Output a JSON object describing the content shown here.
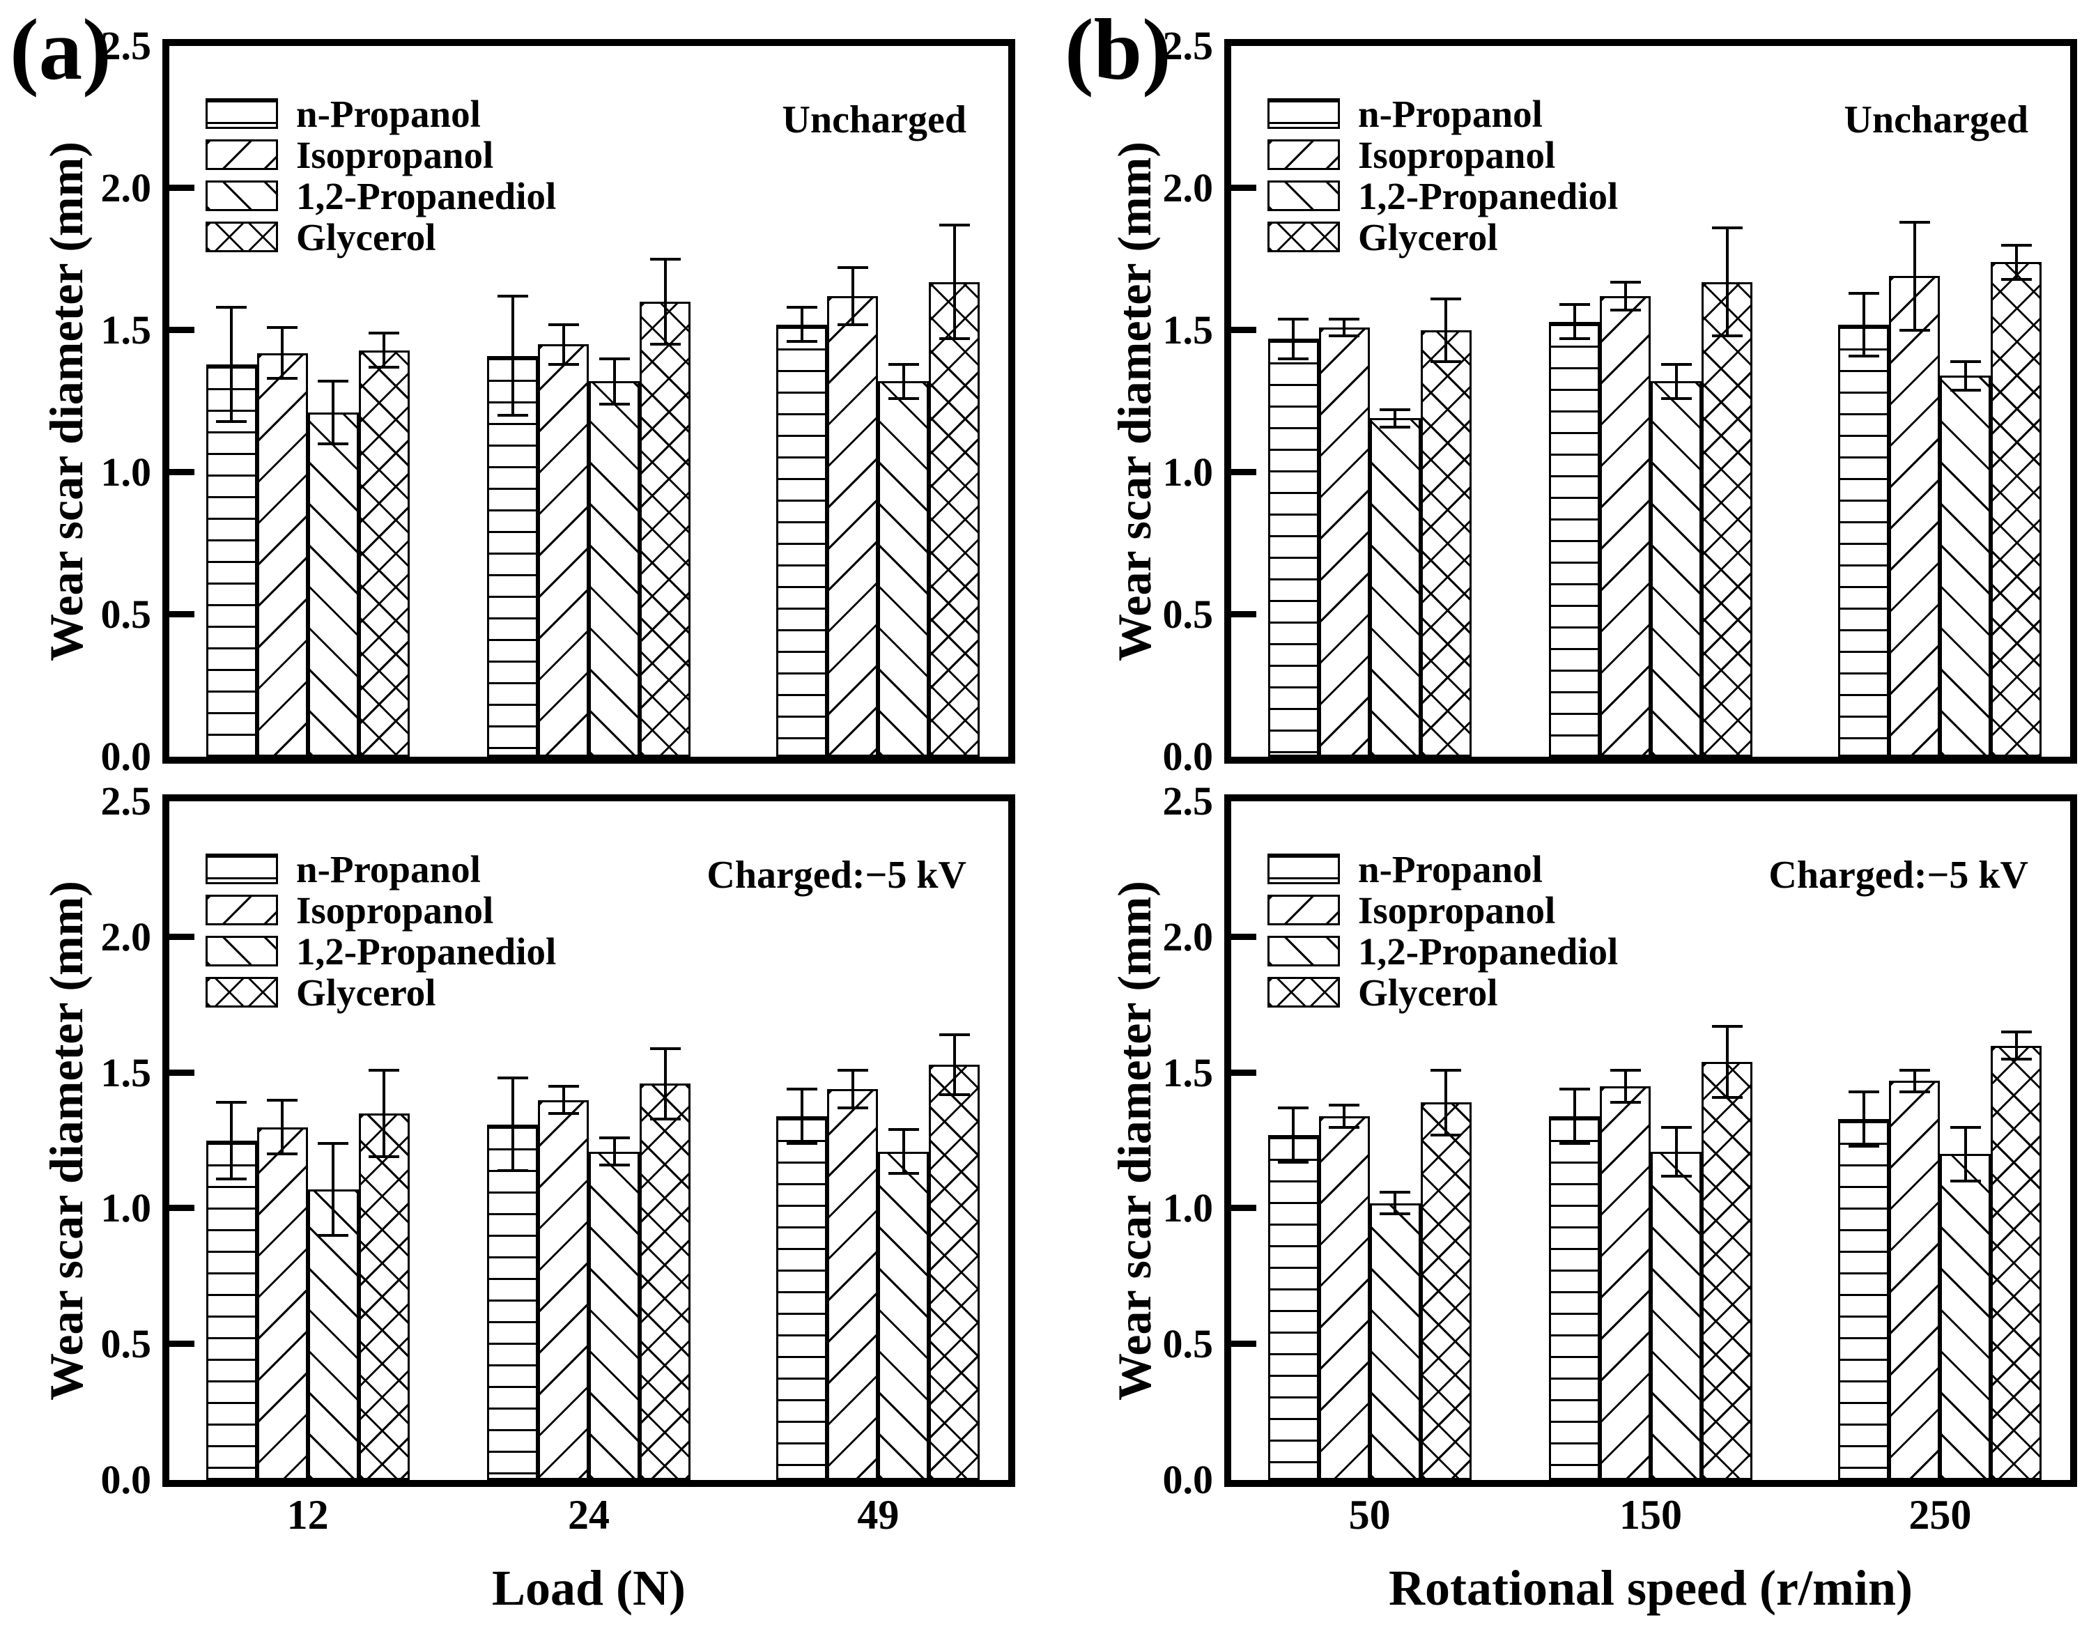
{
  "figure": {
    "background": "#ffffff",
    "ink": "#000000",
    "panel_labels": {
      "a": "(a)",
      "b": "(b)"
    },
    "y_axis_title": "Wear scar diameter (mm)",
    "x_axis_titles": {
      "a": "Load (N)",
      "b": "Rotational speed (r/min)"
    },
    "legend_labels": [
      "n-Propanol",
      "Isopropanol",
      "1,2-Propanediol",
      "Glycerol"
    ],
    "annotations": {
      "uncharged": "Uncharged",
      "charged": "Charged:−5 kV"
    }
  },
  "chart_data": [
    {
      "id": "a-top",
      "type": "bar",
      "title_annotation": "Uncharged",
      "xlabel": "Load (N)",
      "ylabel": "Wear scar diameter (mm)",
      "ylim": [
        0.0,
        2.5
      ],
      "yticks": [
        "0.0",
        "0.5",
        "1.0",
        "1.5",
        "2.0",
        "2.5"
      ],
      "categories": [
        "12",
        "24",
        "49"
      ],
      "show_x_tick_labels": false,
      "legend_position": "upper-left",
      "grid": false,
      "series": [
        {
          "name": "n-Propanol",
          "hatch": "horizontal",
          "values": [
            1.38,
            1.41,
            1.52
          ],
          "errors": [
            0.2,
            0.21,
            0.06
          ]
        },
        {
          "name": "Isopropanol",
          "hatch": "diagonal-up",
          "values": [
            1.42,
            1.45,
            1.62
          ],
          "errors": [
            0.09,
            0.07,
            0.1
          ]
        },
        {
          "name": "1,2-Propanediol",
          "hatch": "diagonal-down",
          "values": [
            1.21,
            1.32,
            1.32
          ],
          "errors": [
            0.11,
            0.08,
            0.06
          ]
        },
        {
          "name": "Glycerol",
          "hatch": "crosshatch",
          "values": [
            1.43,
            1.6,
            1.67
          ],
          "errors": [
            0.06,
            0.15,
            0.2
          ]
        }
      ]
    },
    {
      "id": "b-top",
      "type": "bar",
      "title_annotation": "Uncharged",
      "xlabel": "Rotational speed (r/min)",
      "ylabel": "Wear scar diameter (mm)",
      "ylim": [
        0.0,
        2.5
      ],
      "yticks": [
        "0.0",
        "0.5",
        "1.0",
        "1.5",
        "2.0",
        "2.5"
      ],
      "categories": [
        "50",
        "150",
        "250"
      ],
      "show_x_tick_labels": false,
      "legend_position": "upper-left",
      "grid": false,
      "series": [
        {
          "name": "n-Propanol",
          "hatch": "horizontal",
          "values": [
            1.47,
            1.53,
            1.52
          ],
          "errors": [
            0.07,
            0.06,
            0.11
          ]
        },
        {
          "name": "Isopropanol",
          "hatch": "diagonal-up",
          "values": [
            1.51,
            1.62,
            1.69
          ],
          "errors": [
            0.03,
            0.05,
            0.19
          ]
        },
        {
          "name": "1,2-Propanediol",
          "hatch": "diagonal-down",
          "values": [
            1.19,
            1.32,
            1.34
          ],
          "errors": [
            0.03,
            0.06,
            0.05
          ]
        },
        {
          "name": "Glycerol",
          "hatch": "crosshatch",
          "values": [
            1.5,
            1.67,
            1.74
          ],
          "errors": [
            0.11,
            0.19,
            0.06
          ]
        }
      ]
    },
    {
      "id": "a-bottom",
      "type": "bar",
      "title_annotation": "Charged:−5 kV",
      "xlabel": "Load (N)",
      "ylabel": "Wear scar diameter (mm)",
      "ylim": [
        0.0,
        2.5
      ],
      "yticks": [
        "0.0",
        "0.5",
        "1.0",
        "1.5",
        "2.0",
        "2.5"
      ],
      "categories": [
        "12",
        "24",
        "49"
      ],
      "show_x_tick_labels": true,
      "legend_position": "upper-left",
      "grid": false,
      "series": [
        {
          "name": "n-Propanol",
          "hatch": "horizontal",
          "values": [
            1.25,
            1.31,
            1.34
          ],
          "errors": [
            0.14,
            0.17,
            0.1
          ]
        },
        {
          "name": "Isopropanol",
          "hatch": "diagonal-up",
          "values": [
            1.3,
            1.4,
            1.44
          ],
          "errors": [
            0.1,
            0.05,
            0.07
          ]
        },
        {
          "name": "1,2-Propanediol",
          "hatch": "diagonal-down",
          "values": [
            1.07,
            1.21,
            1.21
          ],
          "errors": [
            0.17,
            0.05,
            0.08
          ]
        },
        {
          "name": "Glycerol",
          "hatch": "crosshatch",
          "values": [
            1.35,
            1.46,
            1.53
          ],
          "errors": [
            0.16,
            0.13,
            0.11
          ]
        }
      ]
    },
    {
      "id": "b-bottom",
      "type": "bar",
      "title_annotation": "Charged:−5 kV",
      "xlabel": "Rotational speed (r/min)",
      "ylabel": "Wear scar diameter (mm)",
      "ylim": [
        0.0,
        2.5
      ],
      "yticks": [
        "0.0",
        "0.5",
        "1.0",
        "1.5",
        "2.0",
        "2.5"
      ],
      "categories": [
        "50",
        "150",
        "250"
      ],
      "show_x_tick_labels": true,
      "legend_position": "upper-left",
      "grid": false,
      "series": [
        {
          "name": "n-Propanol",
          "hatch": "horizontal",
          "values": [
            1.27,
            1.34,
            1.33
          ],
          "errors": [
            0.1,
            0.1,
            0.1
          ]
        },
        {
          "name": "Isopropanol",
          "hatch": "diagonal-up",
          "values": [
            1.34,
            1.45,
            1.47
          ],
          "errors": [
            0.04,
            0.06,
            0.04
          ]
        },
        {
          "name": "1,2-Propanediol",
          "hatch": "diagonal-down",
          "values": [
            1.02,
            1.21,
            1.2
          ],
          "errors": [
            0.04,
            0.09,
            0.1
          ]
        },
        {
          "name": "Glycerol",
          "hatch": "crosshatch",
          "values": [
            1.39,
            1.54,
            1.6
          ],
          "errors": [
            0.12,
            0.13,
            0.05
          ]
        }
      ]
    }
  ]
}
